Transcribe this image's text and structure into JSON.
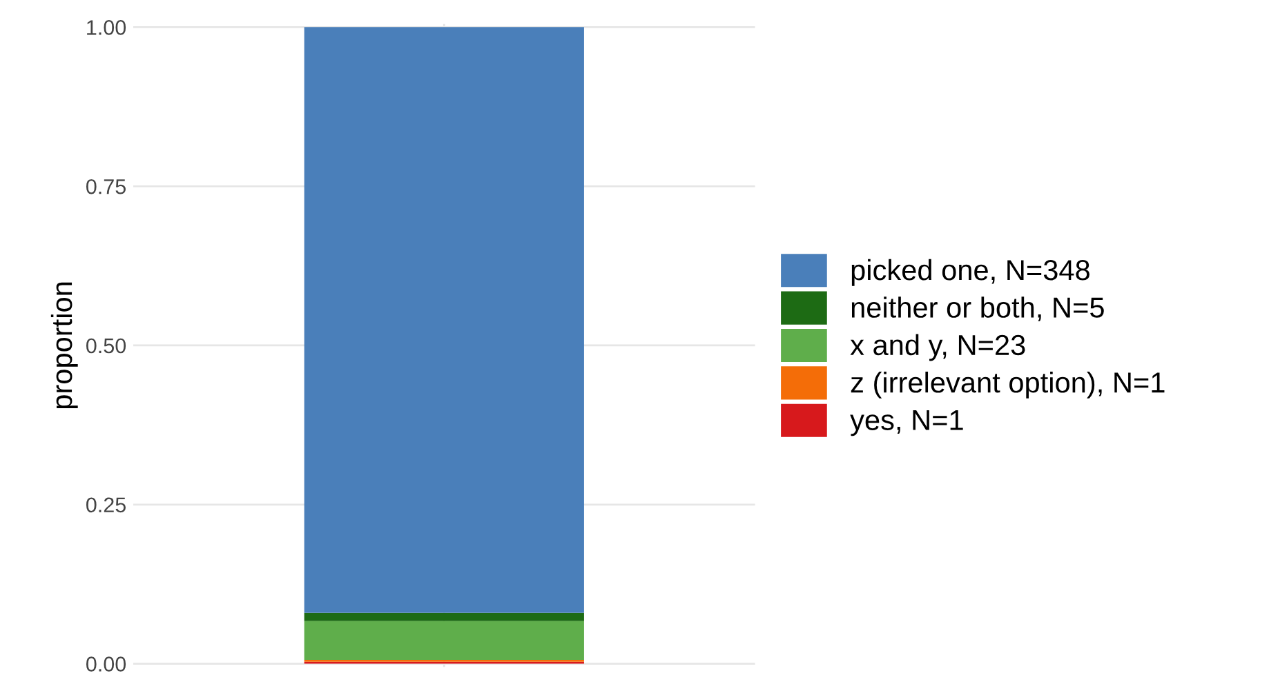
{
  "chart_data": {
    "type": "bar",
    "stacked": true,
    "ylabel": "proportion",
    "categories": [
      null
    ],
    "series": [
      {
        "name": "yes, N=1",
        "color": "#d7191c",
        "values": [
          0.003
        ]
      },
      {
        "name": "z (irrelevant option), N=1",
        "color": "#f46d08",
        "values": [
          0.003
        ]
      },
      {
        "name": "x and y, N=23",
        "color": "#5fae4b",
        "values": [
          0.061
        ]
      },
      {
        "name": "neither or both, N=5",
        "color": "#1d6b14",
        "values": [
          0.013
        ]
      },
      {
        "name": "picked one, N=348",
        "color": "#4a7fba",
        "values": [
          0.92
        ]
      }
    ],
    "ylim": [
      -0.005,
      1.005
    ],
    "yticks": [
      {
        "value": 0,
        "label": "0.00"
      },
      {
        "value": 0.25,
        "label": "0.25"
      },
      {
        "value": 0.5,
        "label": "0.50"
      },
      {
        "value": 0.75,
        "label": "0.75"
      },
      {
        "value": 1,
        "label": "1.00"
      }
    ],
    "grid": true,
    "legend": "right"
  }
}
